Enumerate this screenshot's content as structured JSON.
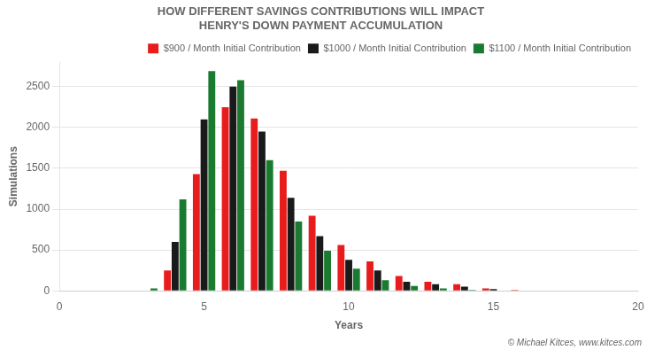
{
  "chart_data": {
    "type": "bar",
    "title": [
      "HOW DIFFERENT SAVINGS CONTRIBUTIONS WILL IMPACT",
      "HENRY'S DOWN PAYMENT ACCUMULATION"
    ],
    "x_label": "Years",
    "y_label": "Simulations",
    "x": [
      1,
      2,
      3,
      4,
      5,
      6,
      7,
      8,
      9,
      10,
      11,
      12,
      13,
      14,
      15,
      16,
      17,
      18,
      19,
      20
    ],
    "series": [
      {
        "name": "$900 / Month Initial Contribution",
        "color": "#e81c1c",
        "values": [
          0,
          0,
          0,
          250,
          1430,
          2250,
          2110,
          1470,
          920,
          560,
          360,
          180,
          110,
          80,
          30,
          10,
          0,
          0,
          0,
          0
        ]
      },
      {
        "name": "$1000 / Month Initial Contribution",
        "color": "#1a1a1a",
        "values": [
          0,
          0,
          0,
          600,
          2100,
          2500,
          1950,
          1140,
          670,
          380,
          250,
          110,
          80,
          50,
          20,
          5,
          0,
          0,
          0,
          0
        ]
      },
      {
        "name": "$1100 / Month Initial Contribution",
        "color": "#1a7a30",
        "values": [
          5,
          0,
          30,
          1120,
          2690,
          2580,
          1600,
          850,
          490,
          270,
          130,
          60,
          30,
          10,
          5,
          0,
          0,
          0,
          0,
          0
        ]
      }
    ],
    "xlim": [
      0,
      20
    ],
    "xticks": [
      0,
      5,
      10,
      15,
      20
    ],
    "ylim": [
      0,
      2800
    ],
    "yticks": [
      0,
      500,
      1000,
      1500,
      2000,
      2500
    ],
    "grid": "y",
    "legend": "upper right",
    "annotations": [
      "© Michael Kitces, www.kitces.com"
    ]
  }
}
